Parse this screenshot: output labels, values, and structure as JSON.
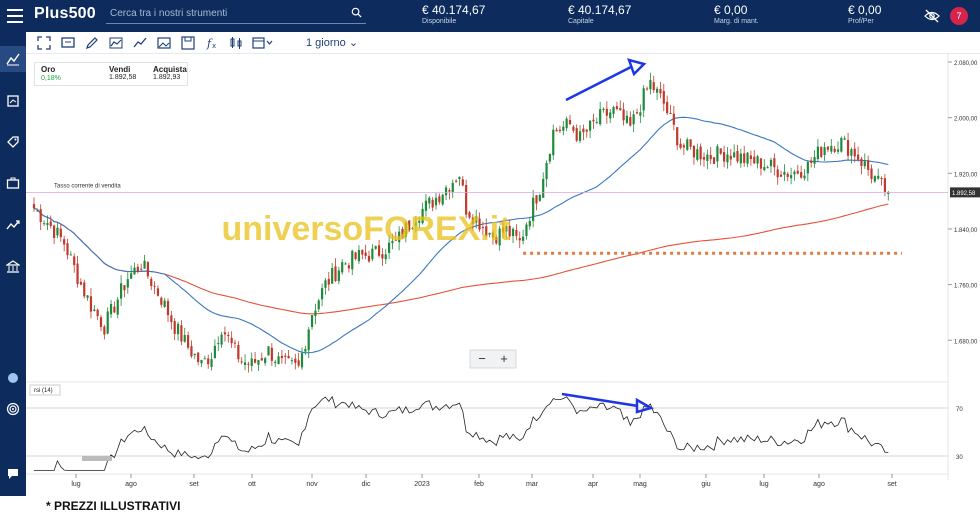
{
  "topbar": {
    "logo": "Plus500",
    "search_placeholder": "Cerca tra i nostri strumenti",
    "stats": [
      {
        "value": "€ 40.174,67",
        "label": "Disponibile"
      },
      {
        "value": "€ 40.174,67",
        "label": "Capitale"
      },
      {
        "value": "€ 0,00",
        "label": "Marg. di mant."
      },
      {
        "value": "€ 0,00",
        "label": "Prof/Per"
      }
    ],
    "notifications": "7"
  },
  "toolbar": {
    "timeframe": "1 giorno"
  },
  "instrument": {
    "name": "Oro",
    "change": "0,18%",
    "sell_label": "Vendi",
    "sell": "1.892,58",
    "buy_label": "Acquista",
    "buy": "1.892,93"
  },
  "chart": {
    "current_rate_label": "Tasso corrente di vendita",
    "current_price_badge": "1.892,58",
    "watermark": "universoFOREX.it",
    "zoom_minus": "−",
    "zoom_plus": "+",
    "rsi_label": "rsi (14)"
  },
  "colors": {
    "navy": "#0d2b5c",
    "bull": "#1f8a3b",
    "bear": "#c0392b",
    "ma_fast": "#3a78c2",
    "ma_slow": "#e5533b",
    "support": "#e07a3f",
    "annotation": "#1f36e6",
    "watermark": "#e8c21a"
  },
  "chart_data": {
    "type": "candlestick",
    "x_tick_labels": [
      "lug",
      "ago",
      "set",
      "ott",
      "nov",
      "dic",
      "2023",
      "feb",
      "mar",
      "apr",
      "mag",
      "giu",
      "lug",
      "ago",
      "set"
    ],
    "y_tick_labels": [
      "2.080,00",
      "2.000,00",
      "1.920,00",
      "1.840,00",
      "1.760,00",
      "1.680,00"
    ],
    "ylim": [
      1620,
      2080
    ],
    "close_anchors": [
      [
        0,
        1870
      ],
      [
        4,
        1850
      ],
      [
        9,
        1820
      ],
      [
        14,
        1760
      ],
      [
        17,
        1730
      ],
      [
        21,
        1700
      ],
      [
        25,
        1740
      ],
      [
        28,
        1770
      ],
      [
        32,
        1790
      ],
      [
        35,
        1765
      ],
      [
        38,
        1740
      ],
      [
        42,
        1700
      ],
      [
        46,
        1670
      ],
      [
        50,
        1645
      ],
      [
        53,
        1660
      ],
      [
        56,
        1700
      ],
      [
        59,
        1672
      ],
      [
        62,
        1650
      ],
      [
        65,
        1645
      ],
      [
        70,
        1665
      ],
      [
        74,
        1645
      ],
      [
        79,
        1640
      ],
      [
        83,
        1720
      ],
      [
        87,
        1760
      ],
      [
        92,
        1790
      ],
      [
        97,
        1800
      ],
      [
        102,
        1805
      ],
      [
        108,
        1820
      ],
      [
        114,
        1860
      ],
      [
        119,
        1880
      ],
      [
        123,
        1900
      ],
      [
        127,
        1920
      ],
      [
        129,
        1870
      ],
      [
        133,
        1850
      ],
      [
        137,
        1830
      ],
      [
        141,
        1838
      ],
      [
        145,
        1820
      ],
      [
        147,
        1850
      ],
      [
        151,
        1900
      ],
      [
        155,
        1980
      ],
      [
        160,
        1990
      ],
      [
        163,
        1970
      ],
      [
        169,
        2000
      ],
      [
        173,
        2010
      ],
      [
        178,
        1985
      ],
      [
        182,
        2030
      ],
      [
        184,
        2050
      ],
      [
        188,
        2020
      ],
      [
        193,
        1960
      ],
      [
        198,
        1950
      ],
      [
        202,
        1945
      ],
      [
        207,
        1950
      ],
      [
        212,
        1940
      ],
      [
        217,
        1935
      ],
      [
        222,
        1925
      ],
      [
        226,
        1920
      ],
      [
        231,
        1930
      ],
      [
        236,
        1960
      ],
      [
        241,
        1965
      ],
      [
        245,
        1950
      ],
      [
        249,
        1925
      ],
      [
        253,
        1900
      ],
      [
        255,
        1892.58
      ]
    ],
    "rsi": {
      "levels": [
        70,
        30
      ]
    },
    "annotations": [
      "higher highs on price",
      "lower highs on RSI (bearish divergence)",
      "support level (dotted)"
    ]
  }
}
